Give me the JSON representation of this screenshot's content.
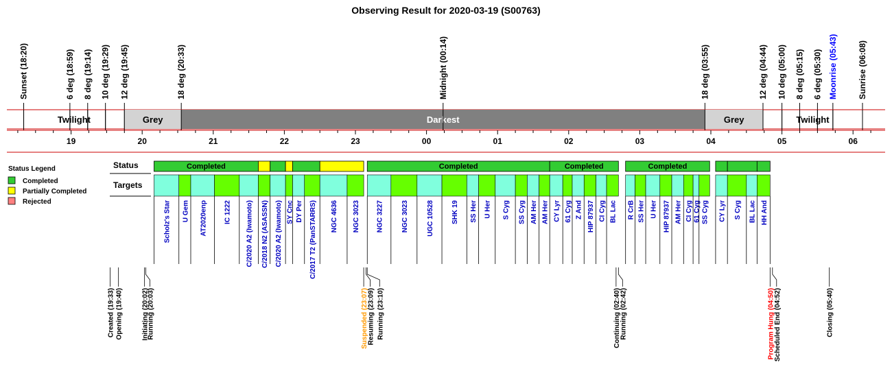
{
  "colors": {
    "completed": "#33cc33",
    "partial": "#ffff00",
    "rejected": "#ff8080",
    "target_a": "#80ffdd",
    "target_b": "#66ff00",
    "grey_band": "#d3d3d3",
    "darkest_band": "#808080",
    "frame_red": "#cc0000",
    "label_blue": "#0000c0",
    "moonrise_blue": "#0000ff",
    "suspended_orange": "#ff9900",
    "hung_red": "#ff0000"
  },
  "chart_data": {
    "type": "timeline",
    "title": "Observing Result for 2020-03-19 (S00763)",
    "time_axis": {
      "start": "18:20",
      "end": "06:08",
      "hour_ticks": [
        "19",
        "20",
        "21",
        "22",
        "23",
        "00",
        "01",
        "02",
        "03",
        "04",
        "05",
        "06"
      ]
    },
    "sky_events": [
      {
        "label": "Sunset (18:20)",
        "time": "18:20"
      },
      {
        "label": "6 deg (18:59)",
        "time": "18:59"
      },
      {
        "label": "8 deg (19:14)",
        "time": "19:14"
      },
      {
        "label": "10 deg (19:29)",
        "time": "19:29"
      },
      {
        "label": "12 deg (19:45)",
        "time": "19:45"
      },
      {
        "label": "18 deg (20:33)",
        "time": "20:33"
      },
      {
        "label": "Midnight (00:14)",
        "time": "00:14"
      },
      {
        "label": "18 deg (03:55)",
        "time": "03:55"
      },
      {
        "label": "12 deg (04:44)",
        "time": "04:44"
      },
      {
        "label": "10 deg (05:00)",
        "time": "05:00"
      },
      {
        "label": "8 deg (05:15)",
        "time": "05:15"
      },
      {
        "label": "6 deg (05:30)",
        "time": "05:30"
      },
      {
        "label": "Moonrise (05:43)",
        "time": "05:43",
        "color": "moonrise"
      },
      {
        "label": "Sunrise (06:08)",
        "time": "06:08"
      }
    ],
    "bands": [
      {
        "label": "Twilight",
        "start": "18:20",
        "end": "19:45",
        "fill": "white"
      },
      {
        "label": "Grey",
        "start": "19:45",
        "end": "20:33",
        "fill": "grey"
      },
      {
        "label": "Darkest",
        "start": "20:33",
        "end": "03:55",
        "fill": "dark"
      },
      {
        "label": "Grey",
        "start": "03:55",
        "end": "04:44",
        "fill": "grey"
      },
      {
        "label": "Twilight",
        "start": "04:44",
        "end": "06:08",
        "fill": "white"
      }
    ],
    "row_labels": {
      "status": "Status",
      "targets": "Targets"
    },
    "status_segments": [
      {
        "start": "20:10",
        "end": "21:38",
        "status": "completed",
        "label": "Completed"
      },
      {
        "start": "21:38",
        "end": "21:48",
        "status": "partial",
        "label": ""
      },
      {
        "start": "21:48",
        "end": "22:01",
        "status": "completed",
        "label": ""
      },
      {
        "start": "22:01",
        "end": "22:07",
        "status": "partial",
        "label": ""
      },
      {
        "start": "22:07",
        "end": "22:30",
        "status": "completed",
        "label": ""
      },
      {
        "start": "22:30",
        "end": "23:07",
        "status": "partial",
        "label": ""
      },
      {
        "start": "23:10",
        "end": "01:44",
        "status": "completed",
        "label": "Completed"
      },
      {
        "start": "01:44",
        "end": "02:42",
        "status": "completed",
        "label": "Completed"
      },
      {
        "start": "02:48",
        "end": "03:59",
        "status": "completed",
        "label": "Completed"
      },
      {
        "start": "04:04",
        "end": "04:14",
        "status": "completed",
        "label": ""
      },
      {
        "start": "04:14",
        "end": "04:39",
        "status": "completed",
        "label": ""
      },
      {
        "start": "04:39",
        "end": "04:50",
        "status": "completed",
        "label": ""
      }
    ],
    "targets": [
      {
        "name": "Scholz's Star",
        "start": "20:10",
        "end": "20:31"
      },
      {
        "name": "U Gem",
        "start": "20:31",
        "end": "20:41"
      },
      {
        "name": "AT2020enp",
        "start": "20:41",
        "end": "21:01"
      },
      {
        "name": "IC 1222",
        "start": "21:01",
        "end": "21:22"
      },
      {
        "name": "C/2020 A2 (Iwamoto)",
        "start": "21:22",
        "end": "21:38"
      },
      {
        "name": "C/2018 N2 (ASASSN)",
        "start": "21:38",
        "end": "21:48"
      },
      {
        "name": "C/2020 A2 (Iwamoto)",
        "start": "21:48",
        "end": "22:01"
      },
      {
        "name": "SY Cnc",
        "start": "22:01",
        "end": "22:07"
      },
      {
        "name": "DY Per",
        "start": "22:07",
        "end": "22:17"
      },
      {
        "name": "C/2017 T2 (PanSTARRS)",
        "start": "22:17",
        "end": "22:30"
      },
      {
        "name": "NGC 4636",
        "start": "22:30",
        "end": "22:53"
      },
      {
        "name": "NGC 3023",
        "start": "22:53",
        "end": "23:07"
      },
      {
        "name": "NGC 3227",
        "start": "23:10",
        "end": "23:30"
      },
      {
        "name": "NGC 3023",
        "start": "23:30",
        "end": "23:52"
      },
      {
        "name": "UGC 10528",
        "start": "23:52",
        "end": "00:13"
      },
      {
        "name": "SHK 19",
        "start": "00:13",
        "end": "00:34"
      },
      {
        "name": "SS Her",
        "start": "00:34",
        "end": "00:44"
      },
      {
        "name": "U Her",
        "start": "00:44",
        "end": "00:58"
      },
      {
        "name": "S Cyg",
        "start": "00:58",
        "end": "01:15"
      },
      {
        "name": "SS Cyg",
        "start": "01:15",
        "end": "01:25"
      },
      {
        "name": "AM Her",
        "start": "01:25",
        "end": "01:35"
      },
      {
        "name": "AM Her",
        "start": "01:35",
        "end": "01:44"
      },
      {
        "name": "CY Lyr",
        "start": "01:44",
        "end": "01:55"
      },
      {
        "name": "61 Cyg",
        "start": "01:55",
        "end": "02:03"
      },
      {
        "name": "Z And",
        "start": "02:03",
        "end": "02:13"
      },
      {
        "name": "HIP 87937",
        "start": "02:13",
        "end": "02:23"
      },
      {
        "name": "CI Cyg",
        "start": "02:23",
        "end": "02:32"
      },
      {
        "name": "BL Lac",
        "start": "02:32",
        "end": "02:42"
      },
      {
        "name": "R CrB",
        "start": "02:48",
        "end": "02:56"
      },
      {
        "name": "SS Her",
        "start": "02:56",
        "end": "03:05"
      },
      {
        "name": "U Her",
        "start": "03:05",
        "end": "03:17"
      },
      {
        "name": "HIP 87937",
        "start": "03:17",
        "end": "03:27"
      },
      {
        "name": "AM Her",
        "start": "03:27",
        "end": "03:37"
      },
      {
        "name": "CI Cyg",
        "start": "03:37",
        "end": "03:45"
      },
      {
        "name": "61 Cyg",
        "start": "03:45",
        "end": "03:50"
      },
      {
        "name": "SS Cyg",
        "start": "03:50",
        "end": "03:59"
      },
      {
        "name": "CY Lyr",
        "start": "04:04",
        "end": "04:14"
      },
      {
        "name": "S Cyg",
        "start": "04:14",
        "end": "04:30"
      },
      {
        "name": "BL Lac",
        "start": "04:30",
        "end": "04:39"
      },
      {
        "name": "HH And",
        "start": "04:39",
        "end": "04:50"
      }
    ],
    "system_events": [
      {
        "label": "Created (19:33)",
        "time": "19:33",
        "color": "black"
      },
      {
        "label": "Opening (19:40)",
        "time": "19:40",
        "color": "black"
      },
      {
        "label": "Initiating (20:02)",
        "time": "20:02",
        "color": "black"
      },
      {
        "label": "Running (20:03)",
        "time": "20:03",
        "color": "black"
      },
      {
        "label": "Suspended (23:07)",
        "time": "23:07",
        "color": "orange"
      },
      {
        "label": "Resuming (23:09)",
        "time": "23:09",
        "color": "black"
      },
      {
        "label": "Running (23:10)",
        "time": "23:10",
        "color": "black"
      },
      {
        "label": "Continuing (02:40)",
        "time": "02:40",
        "color": "black"
      },
      {
        "label": "Running (02:42)",
        "time": "02:42",
        "color": "black"
      },
      {
        "label": "Program Hung (04:50)",
        "time": "04:50",
        "color": "red"
      },
      {
        "label": "Scheduled End (04:52)",
        "time": "04:52",
        "color": "black"
      },
      {
        "label": "Closing (05:40)",
        "time": "05:40",
        "color": "black"
      }
    ],
    "legend": {
      "title": "Status Legend",
      "items": [
        {
          "label": "Completed",
          "status": "completed"
        },
        {
          "label": "Partially Completed",
          "status": "partial"
        },
        {
          "label": "Rejected",
          "status": "rejected"
        }
      ]
    }
  }
}
